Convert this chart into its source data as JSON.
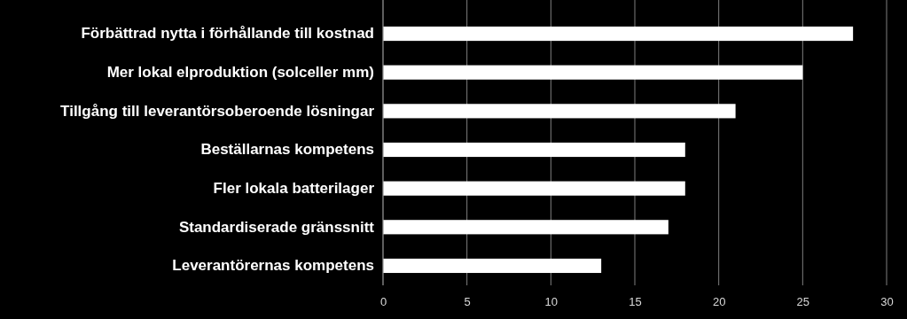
{
  "chart_data": {
    "type": "bar",
    "orientation": "horizontal",
    "categories": [
      "Förbättrad nytta i förhållande till kostnad",
      "Mer lokal elproduktion (solceller mm)",
      "Tillgång till leverantörsoberoende lösningar",
      "Beställarnas kompetens",
      "Fler lokala batterilager",
      "Standardiserade gränssnitt",
      "Leverantörernas kompetens"
    ],
    "values": [
      28,
      25,
      21,
      18,
      18,
      17,
      13
    ],
    "color": "#ffffff",
    "xlim": [
      0,
      30
    ],
    "xticks": [
      0,
      5,
      10,
      15,
      20,
      25,
      30
    ],
    "grid": "x"
  }
}
